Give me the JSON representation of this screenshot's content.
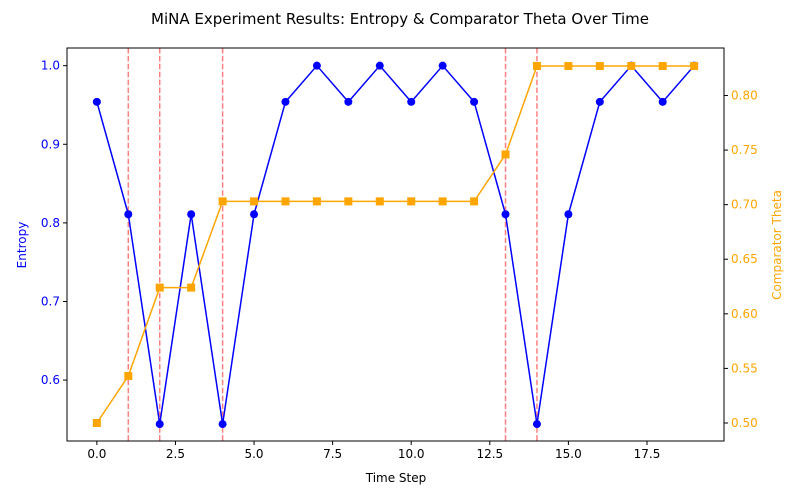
{
  "chart_data": {
    "type": "line",
    "title": "MiNA Experiment Results: Entropy & Comparator Theta Over Time",
    "xlabel": "Time Step",
    "xlim": [
      -0.95,
      19.95
    ],
    "xticks": [
      0.0,
      2.5,
      5.0,
      7.5,
      10.0,
      12.5,
      15.0,
      17.5
    ],
    "xtick_labels": [
      "0.0",
      "2.5",
      "5.0",
      "7.5",
      "10.0",
      "12.5",
      "15.0",
      "17.5"
    ],
    "x": [
      0,
      1,
      2,
      3,
      4,
      5,
      6,
      7,
      8,
      9,
      10,
      11,
      12,
      13,
      14,
      15,
      16,
      17,
      18,
      19
    ],
    "left_axis": {
      "label": "Entropy",
      "color": "#0000ff",
      "ylim": [
        0.5225,
        1.0225
      ],
      "ticks": [
        0.6,
        0.7,
        0.8,
        0.9,
        1.0
      ],
      "tick_labels": [
        "0.6",
        "0.7",
        "0.8",
        "0.9",
        "1.0"
      ]
    },
    "right_axis": {
      "label": "Comparator Theta",
      "color": "#ffa500",
      "ylim": [
        0.4835,
        0.8435
      ],
      "ticks": [
        0.5,
        0.55,
        0.6,
        0.65,
        0.7,
        0.75,
        0.8
      ],
      "tick_labels": [
        "0.50",
        "0.55",
        "0.60",
        "0.65",
        "0.70",
        "0.75",
        "0.80"
      ]
    },
    "series": [
      {
        "axis": "left",
        "color": "#0000ff",
        "marker": "circle",
        "values": [
          0.954,
          0.811,
          0.544,
          0.811,
          0.544,
          0.811,
          0.954,
          1.0,
          0.954,
          1.0,
          0.954,
          1.0,
          0.954,
          0.811,
          0.544,
          0.811,
          0.954,
          1.0,
          0.954,
          1.0
        ]
      },
      {
        "axis": "right",
        "color": "#ffa500",
        "marker": "square",
        "values": [
          0.5,
          0.543,
          0.624,
          0.624,
          0.703,
          0.703,
          0.703,
          0.703,
          0.703,
          0.703,
          0.703,
          0.703,
          0.703,
          0.746,
          0.827,
          0.827,
          0.827,
          0.827,
          0.827,
          0.827
        ]
      }
    ],
    "vlines": {
      "color": "#ff0000",
      "x": [
        1,
        2,
        4,
        13,
        14
      ]
    },
    "grid": false,
    "legend": "none"
  }
}
